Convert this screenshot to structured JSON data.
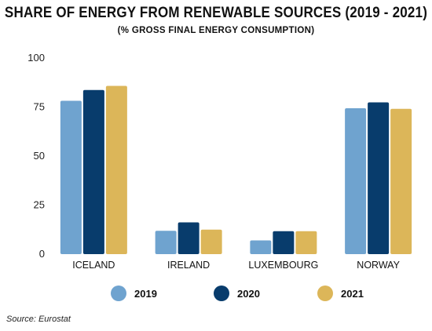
{
  "header": {
    "title": "SHARE OF ENERGY FROM RENEWABLE SOURCES (2019 - 2021)",
    "subtitle": "(% GROSS FINAL ENERGY CONSUMPTION)"
  },
  "footer": {
    "source": "Source: Eurostat"
  },
  "chart_data": {
    "type": "bar",
    "title": "SHARE OF ENERGY FROM RENEWABLE SOURCES (2019 - 2021)",
    "subtitle": "(% GROSS FINAL ENERGY CONSUMPTION)",
    "categories": [
      "ICELAND",
      "IRELAND",
      "LUXEMBOURG",
      "NORWAY"
    ],
    "series": [
      {
        "name": "2019",
        "values": [
          78.2,
          11.9,
          7.0,
          74.4
        ],
        "color": "#6fa3cf"
      },
      {
        "name": "2020",
        "values": [
          83.7,
          16.2,
          11.7,
          77.4
        ],
        "color": "#083c6c"
      },
      {
        "name": "2021",
        "values": [
          85.8,
          12.5,
          11.7,
          74.1
        ],
        "color": "#dcb659"
      }
    ],
    "yticks": [
      0,
      25,
      50,
      75,
      100
    ],
    "ylim": [
      0,
      100
    ],
    "grid": false,
    "legend": "bottom"
  }
}
